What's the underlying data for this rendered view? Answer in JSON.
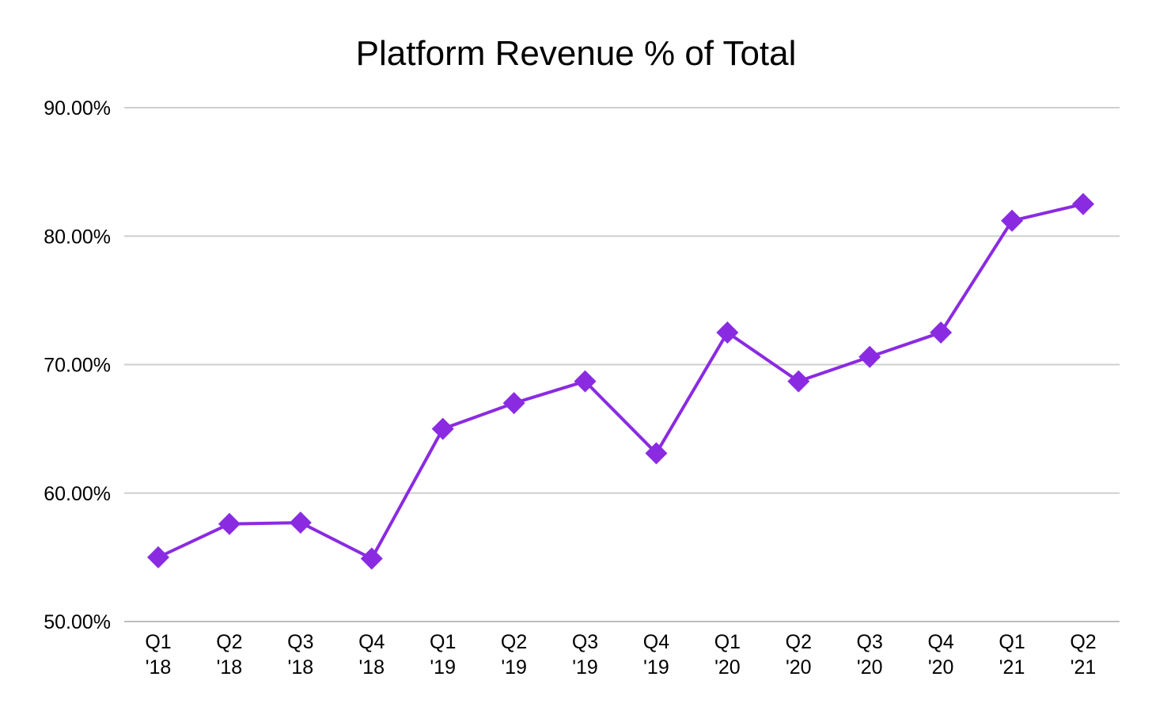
{
  "chart_data": {
    "type": "line",
    "title": "Platform Revenue % of Total",
    "xlabel": "",
    "ylabel": "",
    "categories": [
      [
        "Q1",
        "'18"
      ],
      [
        "Q2",
        "'18"
      ],
      [
        "Q3",
        "'18"
      ],
      [
        "Q4",
        "'18"
      ],
      [
        "Q1",
        "'19"
      ],
      [
        "Q2",
        "'19"
      ],
      [
        "Q3",
        "'19"
      ],
      [
        "Q4",
        "'19"
      ],
      [
        "Q1",
        "'20"
      ],
      [
        "Q2",
        "'20"
      ],
      [
        "Q3",
        "'20"
      ],
      [
        "Q4",
        "'20"
      ],
      [
        "Q1",
        "'21"
      ],
      [
        "Q2",
        "'21"
      ]
    ],
    "series": [
      {
        "values": [
          55.0,
          57.6,
          57.7,
          54.9,
          65.0,
          67.0,
          68.7,
          63.1,
          72.5,
          68.7,
          70.6,
          72.5,
          81.2,
          82.5
        ],
        "color": "#8a2be2",
        "marker": "diamond"
      }
    ],
    "ylim": [
      50,
      90
    ],
    "yticks": [
      50,
      60,
      70,
      80,
      90
    ],
    "ytick_labels": [
      "50.00%",
      "60.00%",
      "70.00%",
      "80.00%",
      "90.00%"
    ],
    "grid": true,
    "legend": "none"
  }
}
